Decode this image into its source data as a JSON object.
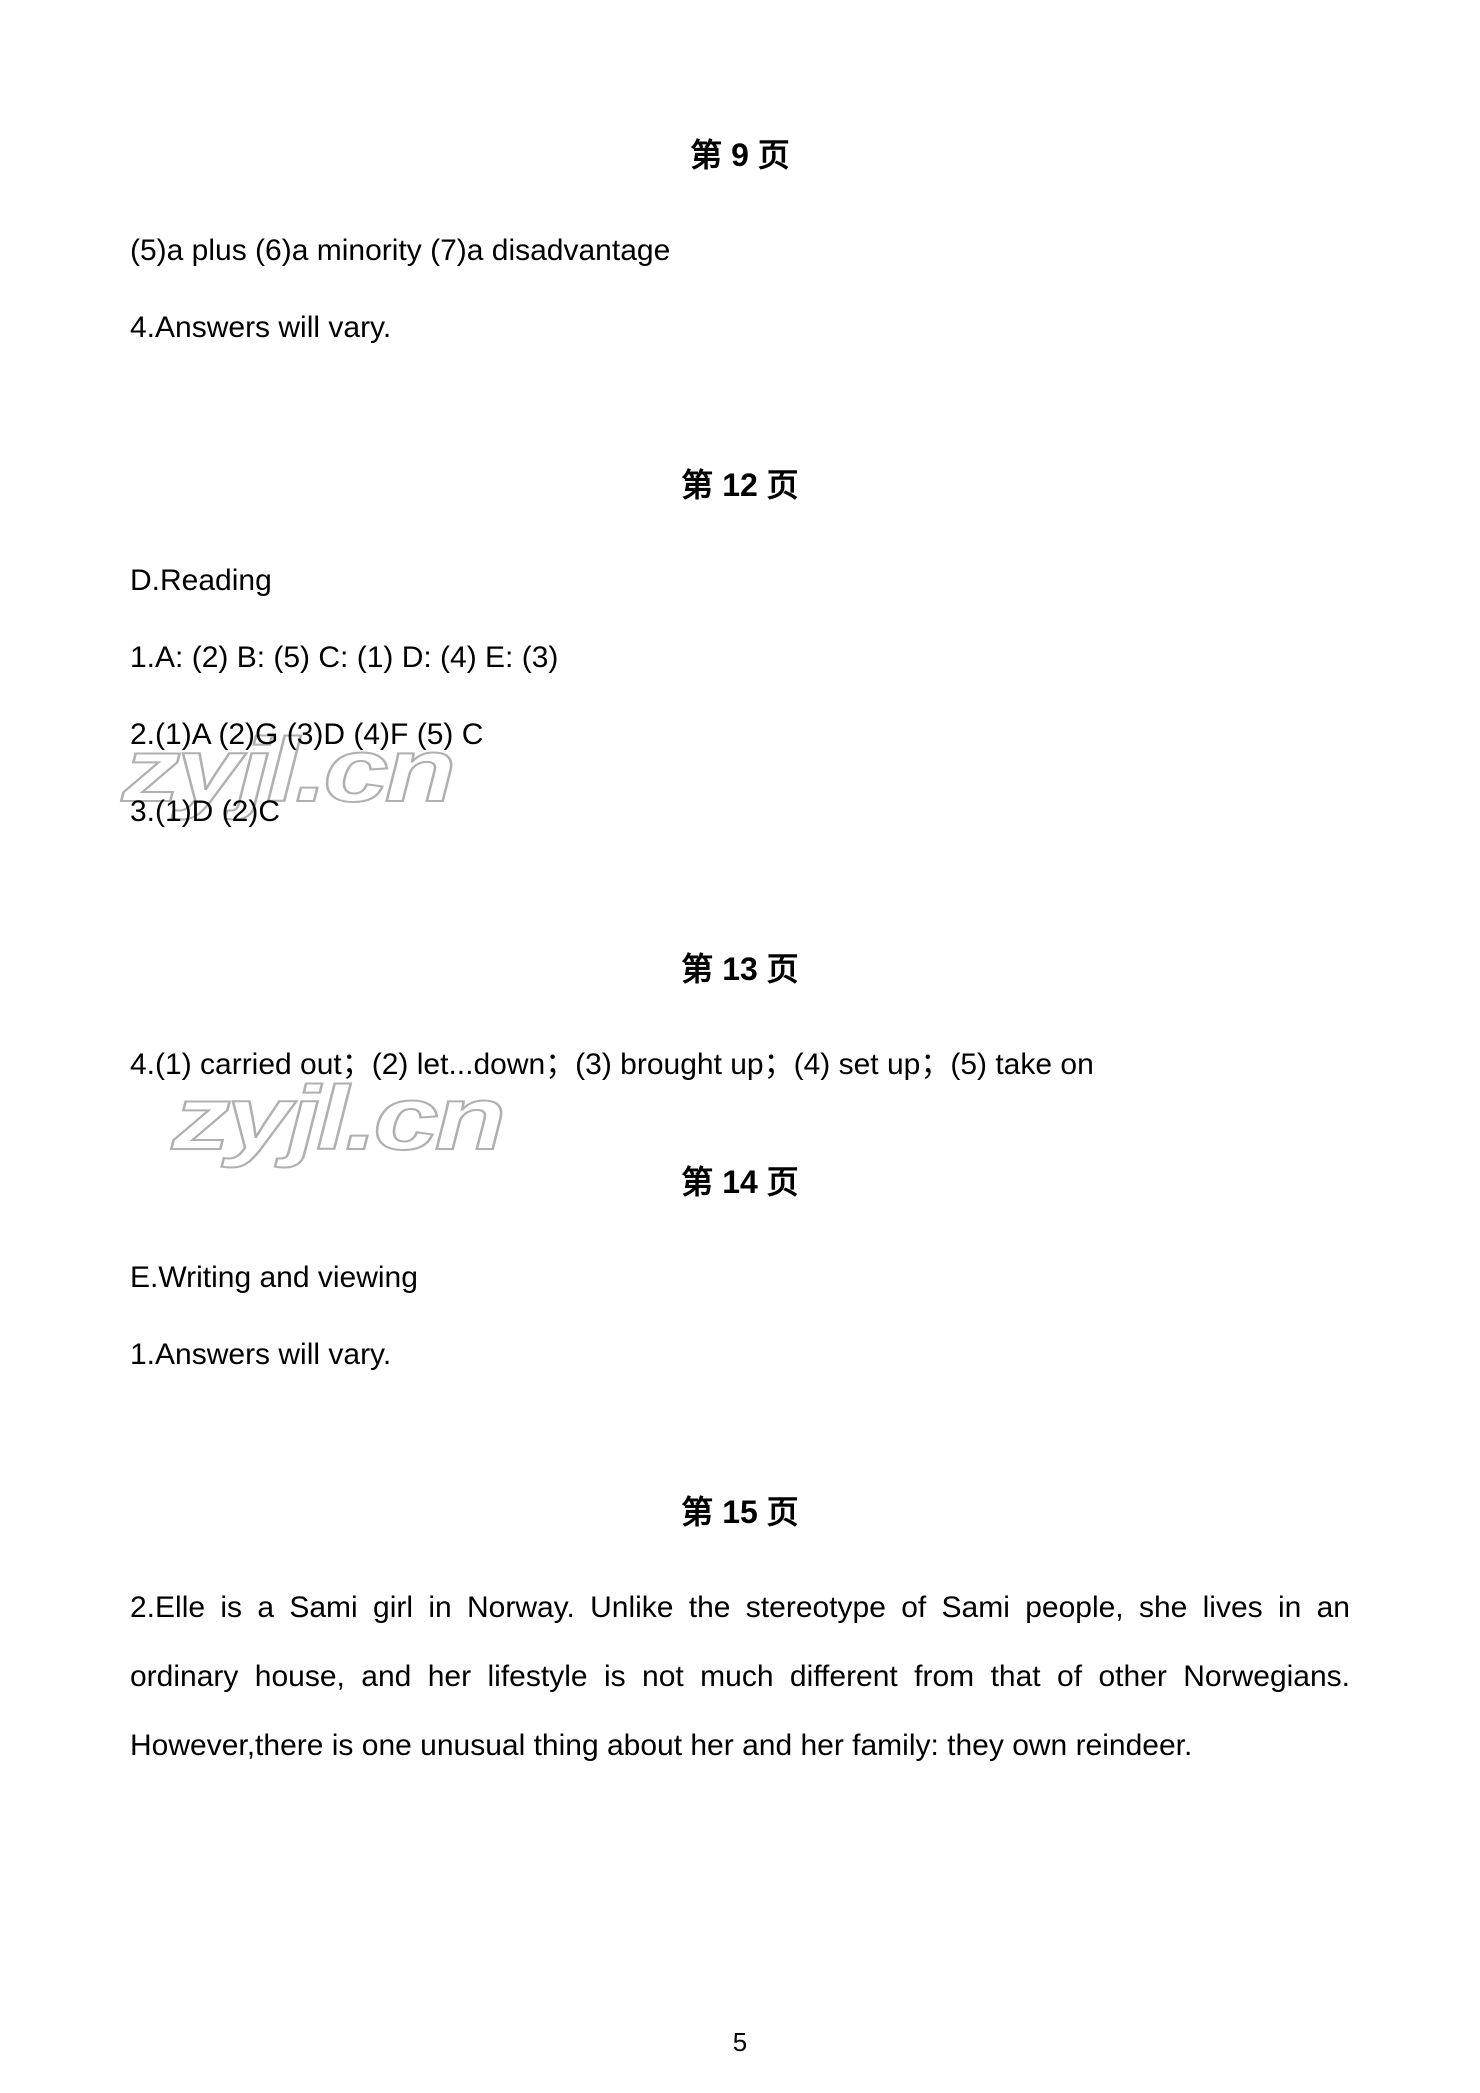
{
  "watermark_text": "zyjl.cn",
  "page_number": "5",
  "sections": {
    "p9": {
      "header": "第 9 页",
      "line1": "(5)a plus   (6)a minority   (7)a disadvantage",
      "line2": "4.Answers will vary."
    },
    "p12": {
      "header": "第 12 页",
      "line1": "D.Reading",
      "line2": "1.A: (2)    B: (5)    C: (1)    D: (4)    E: (3)",
      "line3": "2.(1)A    (2)G    (3)D    (4)F    (5) C",
      "line4": "3.(1)D    (2)C"
    },
    "p13": {
      "header": "第 13 页",
      "line1": "4.(1) carried out；(2) let...down；(3) brought up；(4) set up；(5) take on"
    },
    "p14": {
      "header": "第 14 页",
      "line1": "E.Writing and viewing",
      "line2": "1.Answers will vary."
    },
    "p15": {
      "header": "第 15 页",
      "line1": "2.Elle is a Sami girl in Norway. Unlike the stereotype of Sami people, she lives in an ordinary house, and her lifestyle is not much different from that of other Norwegians. However,there is one unusual thing about her and her family: they own reindeer."
    }
  },
  "styles": {
    "background_color": "#ffffff",
    "text_color": "#000000",
    "header_fontsize": 32,
    "body_fontsize": 30,
    "watermark_stroke": "#b0b0b0"
  }
}
